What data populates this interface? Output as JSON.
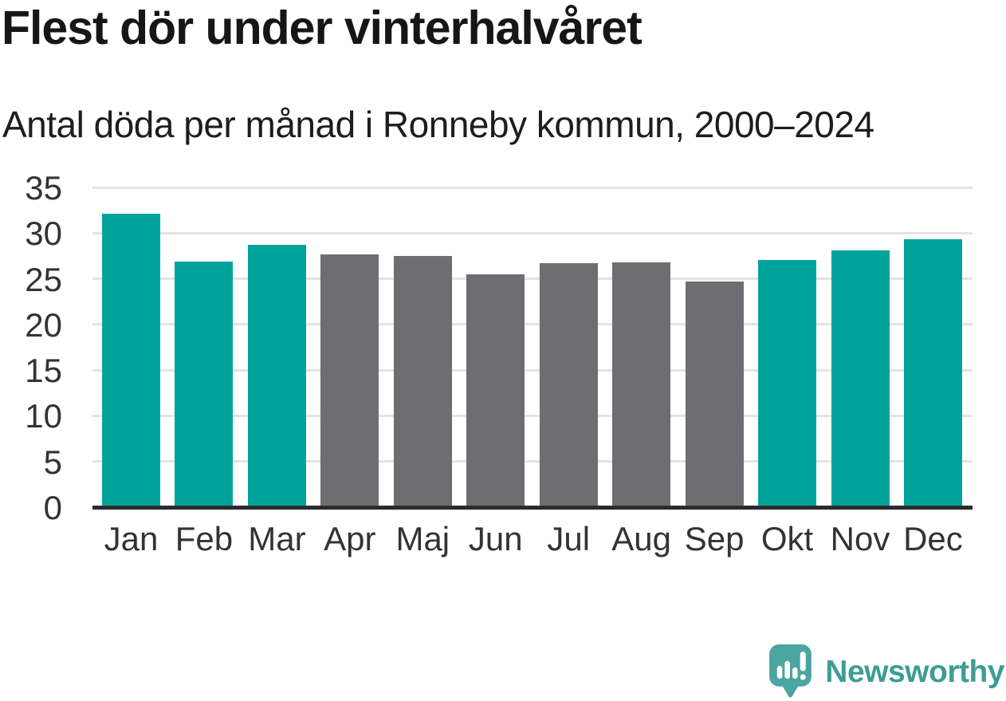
{
  "title": "Flest dör under vinterhalvåret",
  "subtitle": "Antal döda per månad i Ronneby kommun, 2000–2024",
  "chart_data": {
    "type": "bar",
    "title": "Flest dör under vinterhalvåret",
    "subtitle": "Antal döda per månad i Ronneby kommun, 2000–2024",
    "categories": [
      "Jan",
      "Feb",
      "Mar",
      "Apr",
      "Maj",
      "Jun",
      "Jul",
      "Aug",
      "Sep",
      "Okt",
      "Nov",
      "Dec"
    ],
    "values": [
      32.1,
      26.9,
      28.7,
      27.7,
      27.5,
      25.5,
      26.7,
      26.8,
      24.7,
      27.1,
      28.1,
      29.3
    ],
    "bar_groups": [
      "winter",
      "winter",
      "winter",
      "summer",
      "summer",
      "summer",
      "summer",
      "summer",
      "summer",
      "winter",
      "winter",
      "winter"
    ],
    "group_colors": {
      "winter": "#00a39b",
      "summer": "#6e6e72"
    },
    "xlabel": "",
    "ylabel": "",
    "ylim": [
      0,
      35
    ],
    "yticks": [
      0,
      5,
      10,
      15,
      20,
      25,
      30,
      35
    ],
    "grid": true,
    "legend": "none",
    "axis_color": "#2b2b2b",
    "gridline_color": "#e3e3e3",
    "tick_label_color": "#333333"
  },
  "footer": {
    "brand": "Newsworthy",
    "brand_text_color": "#3d9c96",
    "logo_icon": "newsworthy-speech-bubble-chart-icon",
    "logo_icon_color": "#4ba5a0"
  }
}
